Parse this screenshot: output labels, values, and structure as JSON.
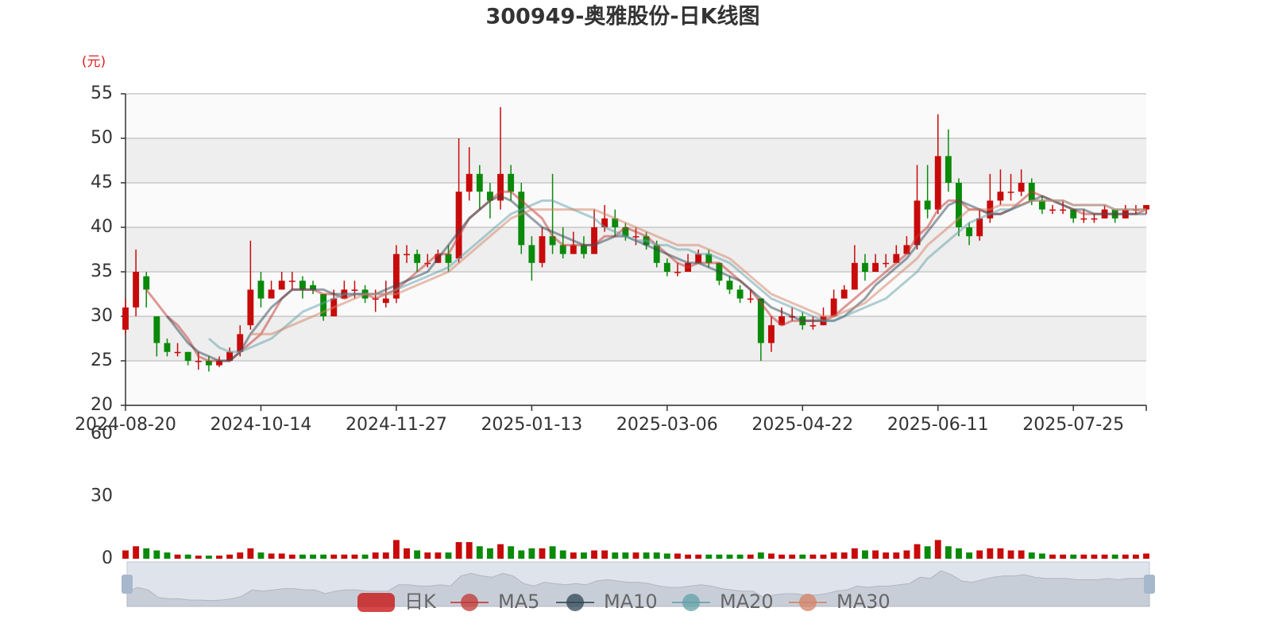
{
  "chart_data": {
    "type": "candlestick",
    "title": "300949-奥雅股份-日K线图",
    "y_unit": "(元)",
    "candle_name": "日K",
    "up_color": "#c80a0a",
    "down_color": "#0a8a0a",
    "split_area_colors": [
      "#fafafa",
      "#eeeeee"
    ],
    "grid": true,
    "categories": [
      "2024-08-20",
      null,
      null,
      null,
      null,
      null,
      null,
      null,
      null,
      null,
      null,
      null,
      null,
      "2024-10-14",
      null,
      null,
      null,
      null,
      null,
      null,
      null,
      null,
      null,
      null,
      null,
      null,
      "2024-11-27",
      null,
      null,
      null,
      null,
      null,
      null,
      null,
      null,
      null,
      null,
      null,
      null,
      "2025-01-13",
      null,
      null,
      null,
      null,
      null,
      null,
      null,
      null,
      null,
      null,
      null,
      null,
      "2025-03-06",
      null,
      null,
      null,
      null,
      null,
      null,
      null,
      null,
      null,
      null,
      null,
      null,
      "2025-04-22",
      null,
      null,
      null,
      null,
      null,
      null,
      null,
      null,
      null,
      null,
      null,
      null,
      "2025-06-11",
      null,
      null,
      null,
      null,
      null,
      null,
      null,
      null,
      null,
      null,
      null,
      null,
      "2025-07-25",
      null,
      null,
      null,
      null,
      null,
      null,
      null
    ],
    "ylim": [
      20,
      55
    ],
    "yticks": [
      20,
      25,
      30,
      35,
      40,
      45,
      50,
      55
    ],
    "candles": [
      [
        28.5,
        31,
        28,
        32
      ],
      [
        31,
        35,
        30,
        37.5
      ],
      [
        34.5,
        33,
        31,
        35
      ],
      [
        30,
        27,
        25.5,
        30
      ],
      [
        27,
        26,
        25.5,
        27.5
      ],
      [
        26,
        26,
        25.5,
        27
      ],
      [
        26,
        25,
        24.5,
        26
      ],
      [
        25,
        25,
        24,
        26
      ],
      [
        25,
        24.5,
        23.8,
        25.5
      ],
      [
        24.5,
        25,
        24.3,
        25.5
      ],
      [
        25,
        26,
        25,
        26.5
      ],
      [
        26,
        28,
        25.5,
        29
      ],
      [
        29,
        33,
        28.5,
        38.5
      ],
      [
        34,
        32,
        31,
        35
      ],
      [
        32,
        33,
        32,
        34
      ],
      [
        33,
        34,
        33,
        35
      ],
      [
        34,
        34,
        33,
        35
      ],
      [
        34,
        33,
        32,
        34.5
      ],
      [
        33.5,
        33,
        32.5,
        34
      ],
      [
        32.5,
        30,
        29.5,
        32.5
      ],
      [
        30,
        32,
        30,
        33
      ],
      [
        32,
        33,
        32,
        34
      ],
      [
        33,
        33,
        32,
        34
      ],
      [
        33,
        32,
        31.5,
        33.5
      ],
      [
        32,
        32,
        30.5,
        33
      ],
      [
        31.5,
        32,
        31,
        34
      ],
      [
        32,
        37,
        31.5,
        38
      ],
      [
        37,
        37,
        36,
        38
      ],
      [
        37,
        36,
        35,
        37.5
      ],
      [
        36,
        36,
        35.5,
        37
      ],
      [
        36,
        37,
        36,
        37.5
      ],
      [
        37,
        36,
        35,
        38
      ],
      [
        36.5,
        44,
        36,
        50
      ],
      [
        44,
        46,
        43,
        49
      ],
      [
        46,
        44,
        42,
        47
      ],
      [
        44,
        43,
        41,
        45
      ],
      [
        43,
        46,
        42,
        53.5
      ],
      [
        46,
        44,
        43,
        47
      ],
      [
        44,
        38,
        37,
        45
      ],
      [
        38,
        36,
        34,
        39
      ],
      [
        36,
        39,
        35.5,
        40
      ],
      [
        39,
        38,
        37,
        46
      ],
      [
        38,
        37,
        36.5,
        40
      ],
      [
        37,
        38,
        37,
        39.5
      ],
      [
        38,
        37,
        36.5,
        39
      ],
      [
        37,
        40,
        37,
        42
      ],
      [
        40,
        41,
        39.5,
        42.5
      ],
      [
        41,
        40,
        39,
        42
      ],
      [
        40,
        39,
        38.5,
        40.5
      ],
      [
        39,
        39,
        38,
        40
      ],
      [
        39,
        38,
        37.5,
        39.5
      ],
      [
        38,
        36,
        35.5,
        38.5
      ],
      [
        36,
        35,
        34.5,
        36.5
      ],
      [
        35,
        35,
        34.5,
        36
      ],
      [
        35,
        36,
        35,
        37
      ],
      [
        36,
        37,
        36,
        37.5
      ],
      [
        37,
        36,
        35.5,
        37.5
      ],
      [
        36,
        34,
        33.5,
        36
      ],
      [
        34,
        33,
        32.5,
        34.5
      ],
      [
        33,
        32,
        31.5,
        33.5
      ],
      [
        32,
        32,
        31.5,
        33
      ],
      [
        32,
        27,
        25,
        32
      ],
      [
        27,
        29,
        26,
        30
      ],
      [
        29,
        30,
        29,
        31
      ],
      [
        30,
        30,
        29.5,
        31
      ],
      [
        30,
        29,
        28.5,
        30.5
      ],
      [
        29,
        29,
        28.5,
        30
      ],
      [
        29,
        30,
        29,
        31
      ],
      [
        30,
        32,
        30,
        33
      ],
      [
        32,
        33,
        32,
        33.5
      ],
      [
        33,
        36,
        33,
        38
      ],
      [
        36,
        35,
        34,
        37
      ],
      [
        35,
        36,
        35,
        37
      ],
      [
        36,
        36,
        35.5,
        37
      ],
      [
        36,
        37,
        36,
        38
      ],
      [
        37,
        38,
        37,
        39
      ],
      [
        38,
        43,
        37.5,
        47
      ],
      [
        43,
        42,
        41,
        47
      ],
      [
        42,
        48,
        41.5,
        52.7
      ],
      [
        48,
        45,
        44,
        51
      ],
      [
        45,
        40,
        39,
        45.5
      ],
      [
        40,
        39,
        38,
        40.5
      ],
      [
        39,
        41,
        38.5,
        42
      ],
      [
        41,
        43,
        40.5,
        46
      ],
      [
        43,
        44,
        42.5,
        46.5
      ],
      [
        44,
        44,
        43,
        46
      ],
      [
        44,
        45,
        43.5,
        46.5
      ],
      [
        45,
        43,
        42.5,
        45.5
      ],
      [
        43,
        42,
        41.5,
        43.5
      ],
      [
        42,
        42,
        41.5,
        42.5
      ],
      [
        42,
        42,
        41.5,
        43
      ],
      [
        42,
        41,
        40.5,
        42
      ],
      [
        41,
        41,
        40.5,
        42
      ],
      [
        41,
        41,
        40.5,
        41.5
      ],
      [
        41,
        42,
        41,
        42.5
      ],
      [
        42,
        41,
        40.5,
        42
      ],
      [
        41,
        42,
        41,
        42.5
      ],
      [
        42,
        42,
        41.5,
        42.5
      ],
      [
        42,
        42.5,
        41.5,
        42.5
      ]
    ],
    "series": [
      {
        "name": "MA5",
        "color": "#c23531",
        "values": [
          null,
          null,
          33,
          31.5,
          30,
          29,
          27.5,
          25.5,
          25,
          25,
          25,
          26,
          27,
          28,
          30,
          32,
          33,
          33,
          33,
          32.5,
          32.5,
          32,
          32.5,
          32.5,
          32,
          32.5,
          33,
          34,
          35,
          36,
          37,
          37,
          39,
          41,
          42,
          43,
          44,
          44,
          43,
          42,
          41,
          39,
          38,
          38,
          38,
          38,
          39,
          39,
          40,
          39.5,
          39,
          38,
          37,
          36,
          35.5,
          36,
          36,
          36,
          35,
          34,
          33,
          31.5,
          30,
          29,
          29.5,
          29.5,
          29.5,
          29.5,
          30,
          31,
          32,
          33,
          34,
          35,
          36,
          37,
          39,
          40,
          42,
          43,
          43,
          42,
          42,
          41.5,
          41.5,
          42,
          43,
          44,
          43.5,
          43,
          42.5,
          42,
          41.5,
          41.5,
          41.5,
          41.5,
          41.5,
          41.5,
          42
        ]
      },
      {
        "name": "MA10",
        "color": "#2f4554",
        "values": [
          null,
          null,
          null,
          null,
          30,
          28.5,
          27,
          26,
          25.5,
          25,
          25,
          26,
          28,
          29.5,
          31,
          32,
          33,
          33,
          33,
          33,
          32.5,
          32.5,
          32.5,
          32.5,
          32.5,
          33,
          33.5,
          34,
          34.5,
          35,
          36.5,
          38,
          39.5,
          41,
          42,
          43,
          43.5,
          43,
          42,
          41,
          40,
          39.5,
          39,
          38.5,
          38,
          38,
          38.5,
          39,
          39,
          38.5,
          38,
          37.5,
          37,
          36.5,
          36,
          36,
          35.5,
          35,
          34.5,
          34,
          33,
          32,
          31,
          30.5,
          30,
          29.5,
          29.5,
          29.5,
          29.5,
          30,
          31,
          32,
          33.5,
          34.5,
          35.5,
          36.5,
          38,
          39.5,
          41,
          42.5,
          43,
          42.5,
          42,
          41.5,
          41.5,
          42,
          42.5,
          43,
          43.5,
          43,
          42.5,
          42,
          42,
          41.5,
          41.5,
          41.5,
          41.5,
          41.5,
          41.5
        ]
      },
      {
        "name": "MA20",
        "color": "#61a0a8",
        "values": [
          null,
          null,
          null,
          null,
          null,
          null,
          null,
          null,
          27.5,
          26.5,
          26,
          26,
          26.5,
          27,
          27.5,
          28.5,
          29.5,
          30.5,
          31,
          31.5,
          32,
          32.5,
          32.5,
          32.5,
          32.5,
          32.5,
          33,
          33.5,
          34,
          34.5,
          35,
          35.5,
          36.5,
          37.5,
          38.5,
          39.5,
          40.5,
          41.5,
          42,
          42.5,
          43,
          43,
          42.5,
          42,
          41.5,
          41,
          40,
          39.5,
          39,
          38.5,
          38.5,
          38,
          38,
          37.5,
          37.5,
          37,
          37,
          36.5,
          36,
          35,
          34,
          33,
          32,
          31.5,
          31,
          30.5,
          30,
          29.5,
          29.5,
          30,
          30.5,
          31,
          31.5,
          32,
          33,
          34,
          35,
          36.5,
          37.5,
          38.5,
          39.5,
          40.5,
          41,
          41.5,
          42,
          42,
          42.5,
          43,
          43,
          43,
          43,
          42.5,
          42.5,
          42.5,
          42.5,
          42,
          42,
          42,
          42
        ]
      },
      {
        "name": "MA30",
        "color": "#d48265",
        "values": [
          null,
          null,
          null,
          null,
          null,
          null,
          null,
          null,
          null,
          null,
          null,
          null,
          28,
          28,
          28,
          28.5,
          29,
          29.5,
          30,
          30.5,
          31,
          31.5,
          32,
          32.5,
          32.5,
          32.5,
          32.5,
          33,
          33.5,
          34,
          34.5,
          35,
          36,
          37,
          38,
          39,
          40,
          41,
          41.5,
          42,
          42,
          42,
          42,
          42,
          42,
          42,
          41.5,
          41,
          40.5,
          40,
          39.5,
          39,
          38.5,
          38,
          38,
          38,
          37.5,
          37,
          36.5,
          35.5,
          34.5,
          33.5,
          32.5,
          32,
          31.5,
          31,
          30.5,
          30,
          30,
          30.5,
          31,
          31.5,
          32.5,
          33.5,
          34.5,
          35.5,
          36.5,
          38,
          39,
          40,
          41,
          42,
          42,
          42,
          42.5,
          42.5,
          42.5,
          43,
          43,
          43,
          43,
          42.5,
          42.5,
          42.5,
          42.5,
          42,
          42,
          42,
          42
        ]
      }
    ],
    "volume": {
      "values": [
        4,
        6,
        5,
        4,
        3,
        2,
        2,
        1.5,
        1.5,
        1.5,
        2,
        3,
        5,
        3,
        2.5,
        2.5,
        2,
        2,
        2,
        2,
        2,
        2,
        2,
        2,
        3,
        3,
        9,
        5,
        4,
        3,
        3,
        3,
        8,
        8,
        6,
        5,
        7,
        6,
        4,
        5,
        5,
        6,
        4,
        3,
        3,
        4,
        4,
        3,
        3,
        3,
        3,
        3,
        2.5,
        2.5,
        2,
        2,
        2,
        2,
        2,
        2,
        2,
        3,
        2.5,
        2,
        2,
        2,
        2,
        2,
        3,
        3,
        5,
        4,
        4,
        3,
        3,
        4,
        7,
        6,
        9,
        6,
        5,
        3,
        4,
        5,
        5,
        4,
        4,
        3,
        2.5,
        2,
        2,
        2,
        2,
        2,
        2,
        2,
        2,
        2,
        2.5
      ],
      "ylim": [
        0,
        60
      ],
      "yticks": [
        0,
        30,
        60
      ]
    }
  }
}
